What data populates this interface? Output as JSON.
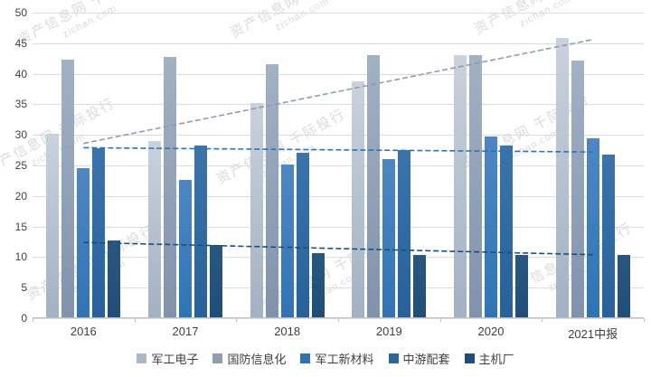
{
  "watermark": {
    "text_cn": "资产信息网 千际投行",
    "text_en": "zichan.com"
  },
  "chart_data": {
    "type": "bar",
    "title": "",
    "xlabel": "",
    "ylabel": "",
    "categories": [
      "2016",
      "2017",
      "2018",
      "2019",
      "2020",
      "2021中报"
    ],
    "ylim": [
      0,
      50
    ],
    "y_ticks": [
      0,
      5,
      10,
      15,
      20,
      25,
      30,
      35,
      40,
      45,
      50
    ],
    "grid": true,
    "legend_position": "bottom",
    "series": [
      {
        "id": "military-electronics",
        "name": "军工电子",
        "color_top": "#c9d2dd",
        "color_bottom": "#a2b1c3",
        "legend_color": "#aab8c9",
        "values": [
          30.2,
          29.0,
          35.2,
          38.7,
          43.0,
          45.9
        ]
      },
      {
        "id": "defense-informatization",
        "name": "国防信息化",
        "color_top": "#a3b1c4",
        "color_bottom": "#8092ac",
        "legend_color": "#8c9db4",
        "values": [
          42.3,
          42.8,
          41.5,
          43.0,
          43.0,
          42.2
        ]
      },
      {
        "id": "military-new-materials",
        "name": "军工新材料",
        "color_top": "#4e87c3",
        "color_bottom": "#2e74b5",
        "legend_color": "#2e74b5",
        "values": [
          24.6,
          22.6,
          25.1,
          26.1,
          29.7,
          29.4
        ]
      },
      {
        "id": "midstream-supporting",
        "name": "中游配套",
        "color_top": "#3a74ab",
        "color_bottom": "#26619b",
        "legend_color": "#2c659e",
        "values": [
          27.8,
          28.2,
          27.0,
          27.5,
          28.2,
          26.8
        ]
      },
      {
        "id": "oem-plants",
        "name": "主机厂",
        "color_top": "#28577f",
        "color_bottom": "#1f4e79",
        "legend_color": "#1f4e79",
        "values": [
          12.7,
          12.0,
          10.6,
          10.4,
          10.3,
          10.3
        ]
      }
    ],
    "trendlines": [
      {
        "id": "trend-military-electronics",
        "series": "军工电子",
        "from": 28.6,
        "to": 45.6,
        "color": "#8c9db4"
      },
      {
        "id": "trend-midstream-supporting",
        "series": "中游配套",
        "from": 27.9,
        "to": 27.2,
        "color": "#2e74b5"
      },
      {
        "id": "trend-oem-plants",
        "series": "主机厂",
        "from": 12.4,
        "to": 10.4,
        "color": "#1f4e79"
      }
    ]
  }
}
